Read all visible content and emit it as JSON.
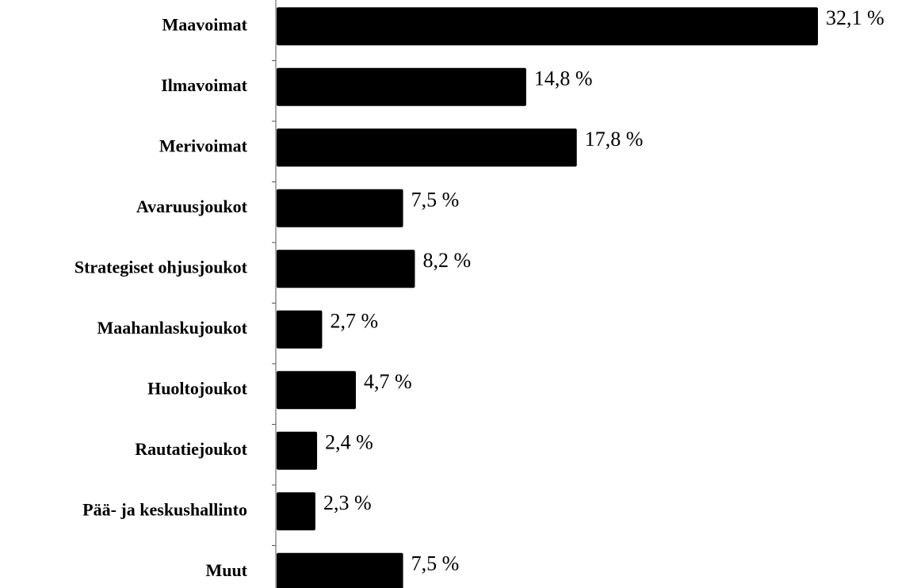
{
  "chart_data": {
    "type": "bar",
    "orientation": "horizontal",
    "categories": [
      "Maavoimat",
      "Ilmavoimat",
      "Merivoimat",
      "Avaruusjoukot",
      "Strategiset ohjusjoukot",
      "Maahanlaskujoukot",
      "Huoltojoukot",
      "Rautatiejoukot",
      "Pää- ja keskushallinto",
      "Muut"
    ],
    "values": [
      32.1,
      14.8,
      17.8,
      7.5,
      8.2,
      2.7,
      4.7,
      2.4,
      2.3,
      7.5
    ],
    "value_labels": [
      "32,1 %",
      "14,8 %",
      "17,8 %",
      "7,5 %",
      "8,2 %",
      "2,7 %",
      "4,7 %",
      "2,4 %",
      "2,3 %",
      "7,5 %"
    ],
    "color": "#000000"
  }
}
